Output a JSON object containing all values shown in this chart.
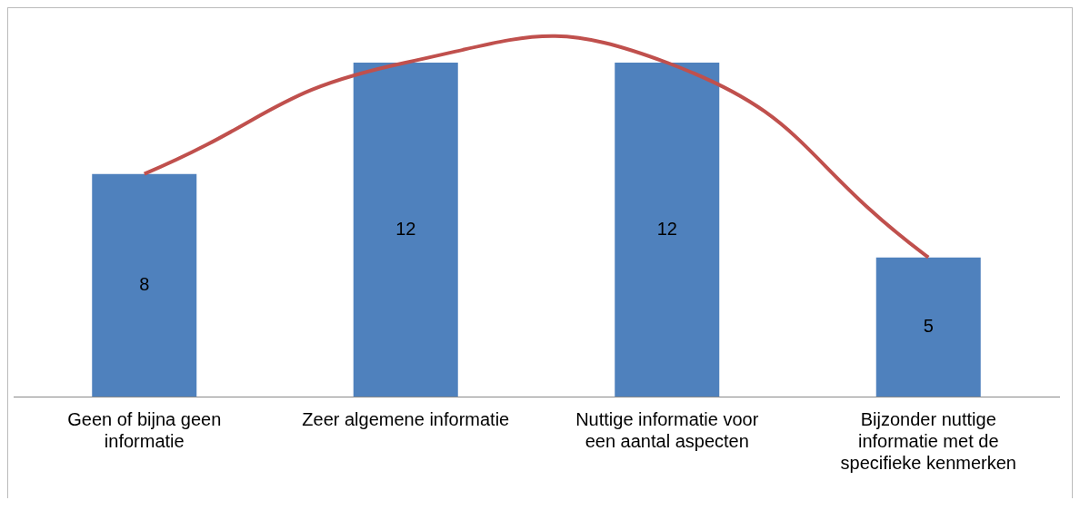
{
  "chart_data": {
    "type": "bar",
    "categories": [
      "Geen of bijna geen informatie",
      "Zeer algemene informatie",
      "Nuttige informatie voor een aantal aspecten",
      "Bijzonder nuttige informatie met de specifieke kenmerken"
    ],
    "series": [
      {
        "color": "#4f81bd",
        "values": [
          8,
          12,
          12,
          5
        ],
        "value_labels": [
          "8",
          "12",
          "12",
          "5"
        ]
      },
      {
        "type": "line",
        "color": "#c0504d",
        "values": [
          8,
          12,
          12,
          5
        ],
        "marker": "none"
      }
    ],
    "grid": false,
    "legend": false,
    "tick_labels": "x"
  }
}
